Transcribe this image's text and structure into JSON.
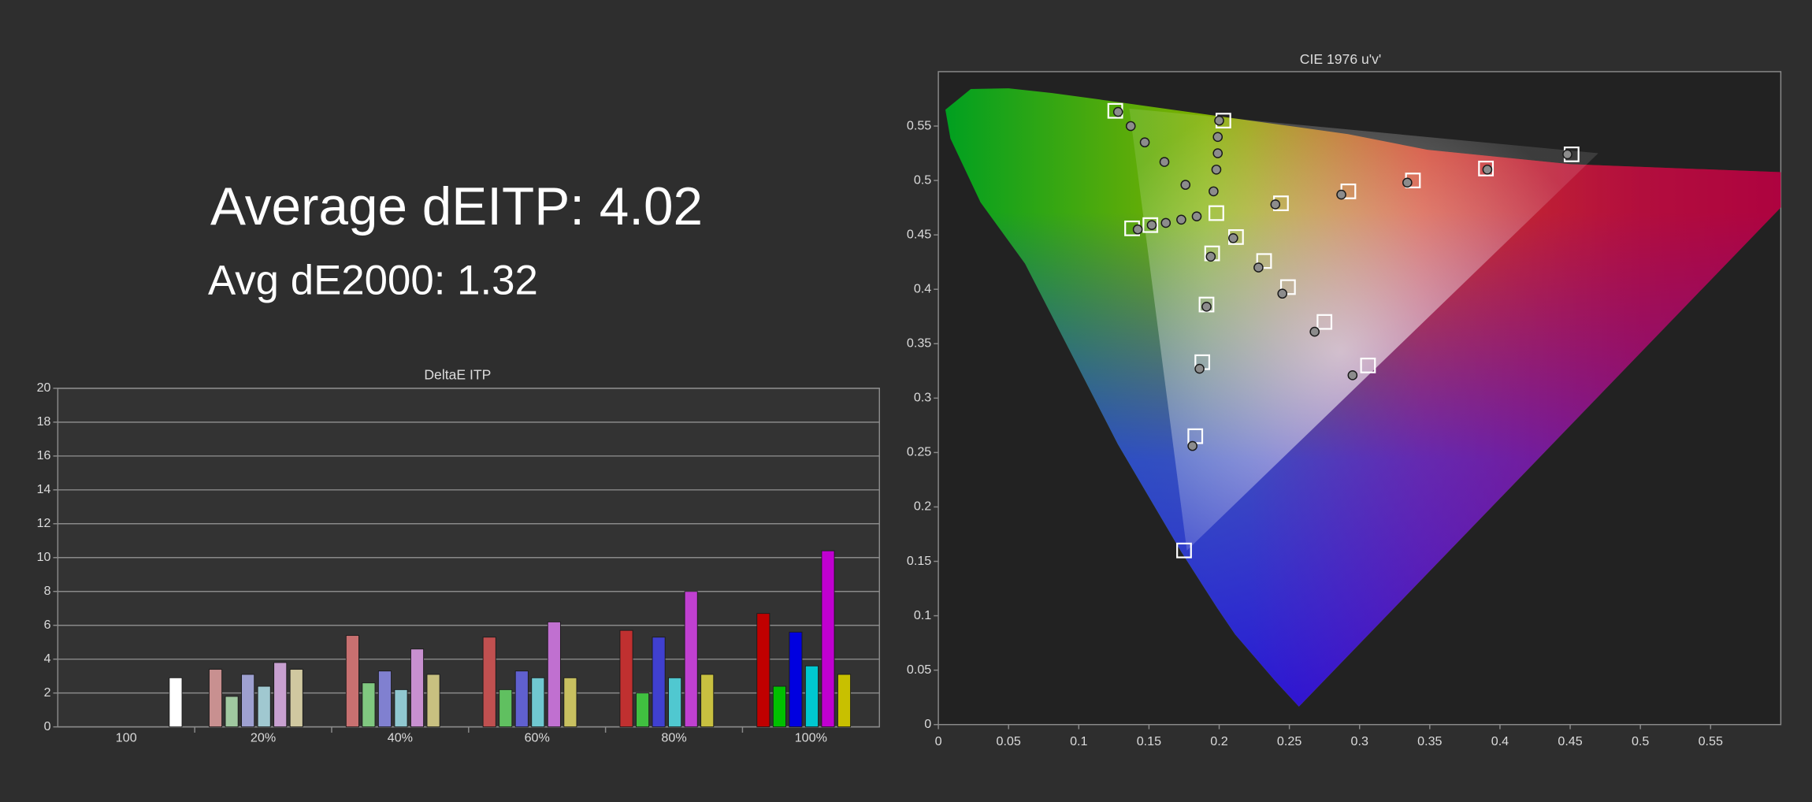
{
  "summary": {
    "average": "Average dEITP: 4.02",
    "avg_de2000": "Avg dE2000: 1.32"
  },
  "chart_data": [
    {
      "type": "bar",
      "title": "DeltaE ITP",
      "categories": [
        "100",
        "20%",
        "40%",
        "60%",
        "80%",
        "100%"
      ],
      "ylim": [
        0,
        20
      ],
      "yticks": [
        0,
        2,
        4,
        6,
        8,
        10,
        12,
        14,
        16,
        18,
        20
      ],
      "grid": true,
      "series": [
        {
          "values": [
            null,
            3.4,
            5.4,
            5.3,
            5.7,
            6.7
          ],
          "colors": [
            null,
            "#c89090",
            "#c87070",
            "#c05050",
            "#c03030",
            "#c00000"
          ]
        },
        {
          "values": [
            null,
            1.8,
            2.6,
            2.2,
            2.0,
            2.4
          ],
          "colors": [
            null,
            "#a0c8a0",
            "#80c880",
            "#60c060",
            "#40c040",
            "#00c000"
          ]
        },
        {
          "values": [
            null,
            3.1,
            3.3,
            3.3,
            5.3,
            5.6
          ],
          "colors": [
            null,
            "#9ea0d0",
            "#8080d0",
            "#6060d0",
            "#4040d0",
            "#0000e0"
          ]
        },
        {
          "values": [
            null,
            2.4,
            2.2,
            2.9,
            2.9,
            3.6
          ],
          "colors": [
            null,
            "#a0c8d0",
            "#90c8d0",
            "#70c8d0",
            "#50c8d0",
            "#00c8d0"
          ]
        },
        {
          "values": [
            null,
            3.8,
            4.6,
            6.2,
            8.0,
            10.4
          ],
          "colors": [
            null,
            "#c8a0d0",
            "#c890d0",
            "#c070d0",
            "#c040d0",
            "#c000d0"
          ]
        },
        {
          "values": [
            null,
            3.4,
            3.1,
            2.9,
            3.1,
            3.1
          ],
          "colors": [
            null,
            "#d0c8a0",
            "#c8c080",
            "#c8c060",
            "#c8c040",
            "#c8c000"
          ]
        },
        {
          "values": [
            2.9,
            null,
            null,
            null,
            null,
            null
          ],
          "colors": [
            "#ffffff",
            null,
            null,
            null,
            null,
            null
          ]
        }
      ]
    },
    {
      "type": "scatter",
      "title": "CIE 1976 u'v'",
      "xlim": [
        0,
        0.6
      ],
      "xticks": [
        0,
        0.05,
        0.1,
        0.15,
        0.2,
        0.25,
        0.3,
        0.35,
        0.4,
        0.45,
        0.5,
        0.55
      ],
      "ylim": [
        0,
        0.6
      ],
      "yticks": [
        0,
        0.05,
        0.1,
        0.15,
        0.2,
        0.25,
        0.3,
        0.35,
        0.4,
        0.45,
        0.5,
        0.55
      ],
      "series": [
        {
          "marker": "square",
          "color": "#ffffff",
          "x": [
            0.126,
            0.203,
            0.138,
            0.151,
            0.198,
            0.244,
            0.292,
            0.338,
            0.39,
            0.451,
            0.212,
            0.232,
            0.249,
            0.275,
            0.306,
            0.195,
            0.191,
            0.188,
            0.183,
            0.175
          ],
          "y": [
            0.564,
            0.555,
            0.456,
            0.459,
            0.47,
            0.479,
            0.49,
            0.5,
            0.511,
            0.524,
            0.448,
            0.426,
            0.402,
            0.37,
            0.33,
            0.433,
            0.386,
            0.333,
            0.265,
            0.16
          ]
        },
        {
          "marker": "circle",
          "color": "#8c8c8c",
          "x": [
            0.128,
            0.137,
            0.147,
            0.161,
            0.176,
            0.2,
            0.199,
            0.199,
            0.198,
            0.196,
            0.142,
            0.152,
            0.162,
            0.173,
            0.184,
            0.24,
            0.287,
            0.334,
            0.391,
            0.448,
            0.21,
            0.228,
            0.245,
            0.268,
            0.295,
            0.194,
            0.191,
            0.186,
            0.181
          ],
          "y": [
            0.563,
            0.55,
            0.535,
            0.517,
            0.496,
            0.555,
            0.54,
            0.525,
            0.51,
            0.49,
            0.455,
            0.459,
            0.461,
            0.464,
            0.467,
            0.478,
            0.487,
            0.498,
            0.51,
            0.524,
            0.447,
            0.42,
            0.396,
            0.361,
            0.321,
            0.43,
            0.384,
            0.327,
            0.256
          ]
        }
      ]
    }
  ]
}
